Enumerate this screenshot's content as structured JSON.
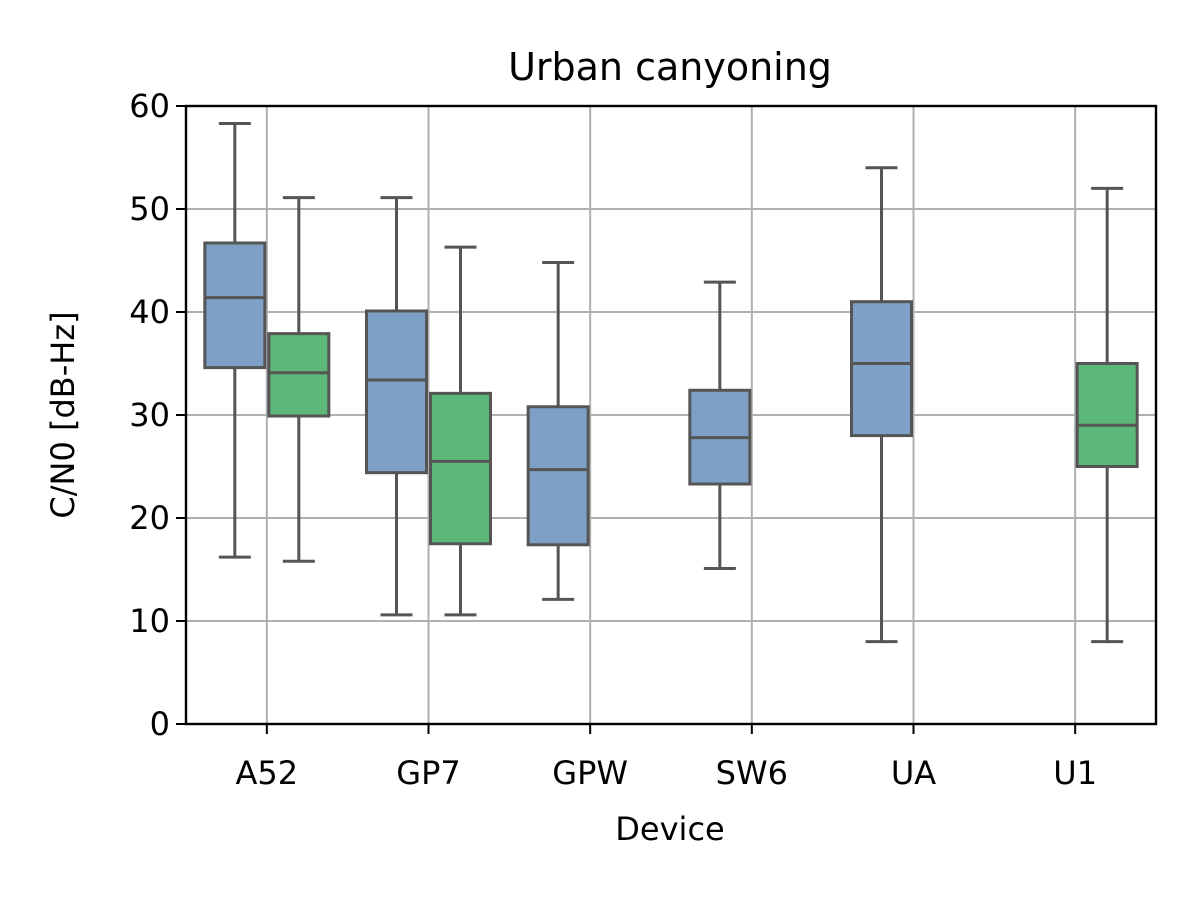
{
  "chart_data": {
    "type": "box",
    "title": "Urban canyoning",
    "xlabel": "Device",
    "ylabel": "C/N0 [dB-Hz]",
    "ylim": [
      0,
      60
    ],
    "yticks": [
      0,
      10,
      20,
      30,
      40,
      50,
      60
    ],
    "categories": [
      "A52",
      "GP7",
      "GPW",
      "SW6",
      "UA",
      "U1"
    ],
    "grid": true,
    "colors": {
      "series_a": "#7fa0c6",
      "series_b": "#5bb878",
      "box_edge": "#555555",
      "grid": "#b0b0b0"
    },
    "series": [
      {
        "boxes": [
          {
            "category": "A52",
            "whisker_low": 16.2,
            "q1": 34.6,
            "median": 41.4,
            "q3": 46.7,
            "whisker_high": 58.3
          },
          {
            "category": "GP7",
            "whisker_low": 10.6,
            "q1": 24.4,
            "median": 33.4,
            "q3": 40.1,
            "whisker_high": 51.1
          },
          {
            "category": "GPW",
            "whisker_low": 12.1,
            "q1": 17.4,
            "median": 24.7,
            "q3": 30.8,
            "whisker_high": 44.8
          },
          {
            "category": "SW6",
            "whisker_low": 15.1,
            "q1": 23.3,
            "median": 27.8,
            "q3": 32.4,
            "whisker_high": 42.9
          },
          {
            "category": "UA",
            "whisker_low": 8.0,
            "q1": 28.0,
            "median": 35.0,
            "q3": 41.0,
            "whisker_high": 54.0
          }
        ]
      },
      {
        "boxes": [
          {
            "category": "A52",
            "whisker_low": 15.8,
            "q1": 29.9,
            "median": 34.1,
            "q3": 37.9,
            "whisker_high": 51.1
          },
          {
            "category": "GP7",
            "whisker_low": 10.6,
            "q1": 17.5,
            "median": 25.5,
            "q3": 32.1,
            "whisker_high": 46.3
          },
          {
            "category": "U1",
            "whisker_low": 8.0,
            "q1": 25.0,
            "median": 29.0,
            "q3": 35.0,
            "whisker_high": 52.0
          }
        ]
      }
    ]
  }
}
